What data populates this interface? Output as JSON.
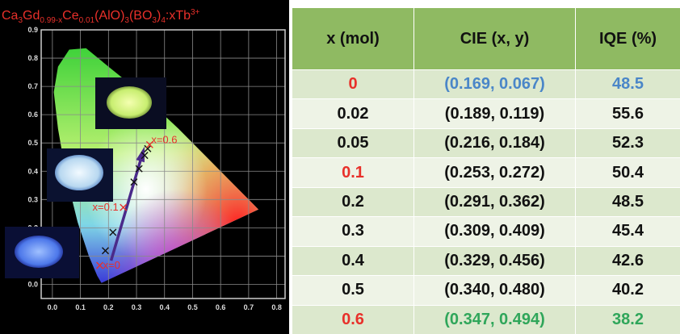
{
  "chart_data": {
    "type": "scatter",
    "title_parts": [
      "Ca",
      "3",
      "Gd",
      "0.99-x",
      "Ce",
      "0.01",
      "(AlO)",
      "3",
      "(BO",
      "3",
      ")",
      "4",
      ":xTb",
      "3+"
    ],
    "x": [
      0.169,
      0.189,
      0.216,
      0.253,
      0.291,
      0.309,
      0.329,
      0.34,
      0.347
    ],
    "y": [
      0.067,
      0.119,
      0.184,
      0.272,
      0.362,
      0.409,
      0.456,
      0.48,
      0.494
    ],
    "colors": [
      "#e8302a",
      "#111111",
      "#111111",
      "#e8302a",
      "#111111",
      "#111111",
      "#111111",
      "#111111",
      "#e8302a"
    ],
    "xlim": [
      -0.04,
      0.83
    ],
    "ylim": [
      -0.05,
      0.9
    ],
    "xticks": [
      {
        "value": 0,
        "label": "0.0"
      },
      0.1,
      0.2,
      0.3,
      0.4,
      0.5,
      0.6,
      0.7,
      0.8
    ],
    "yticks": [
      {
        "value": 0,
        "label": "0.0"
      },
      0.1,
      0.2,
      0.3,
      0.4,
      0.5,
      0.6,
      0.7,
      0.8,
      0.9
    ],
    "grid": true,
    "annotations": [
      "x=0",
      "x=0.1",
      "x=0.6"
    ],
    "annotation_color": "#e8302a"
  },
  "table": {
    "columns": [
      "x (mol)",
      "CIE (x, y)",
      "IQE (%)"
    ],
    "rows": [
      [
        "0",
        "(0.169, 0.067)",
        "48.5"
      ],
      [
        "0.02",
        "(0.189, 0.119)",
        "55.6"
      ],
      [
        "0.05",
        "(0.216, 0.184)",
        "52.3"
      ],
      [
        "0.1",
        "(0.253, 0.272)",
        "50.4"
      ],
      [
        "0.2",
        "(0.291, 0.362)",
        "48.5"
      ],
      [
        "0.3",
        "(0.309, 0.409)",
        "45.4"
      ],
      [
        "0.4",
        "(0.329, 0.456)",
        "42.6"
      ],
      [
        "0.5",
        "(0.340, 0.480)",
        "40.2"
      ],
      [
        "0.6",
        "(0.347, 0.494)",
        "38.2"
      ]
    ],
    "cell_colors": [
      [
        "#e8302a",
        "#4a86c8",
        "#4a86c8"
      ],
      [
        "#111",
        "#111",
        "#111"
      ],
      [
        "#111",
        "#111",
        "#111"
      ],
      [
        "#e8302a",
        "#111",
        "#111"
      ],
      [
        "#111",
        "#111",
        "#111"
      ],
      [
        "#111",
        "#111",
        "#111"
      ],
      [
        "#111",
        "#111",
        "#111"
      ],
      [
        "#111",
        "#111",
        "#111"
      ],
      [
        "#e8302a",
        "#2fa65a",
        "#2fa65a"
      ]
    ]
  }
}
